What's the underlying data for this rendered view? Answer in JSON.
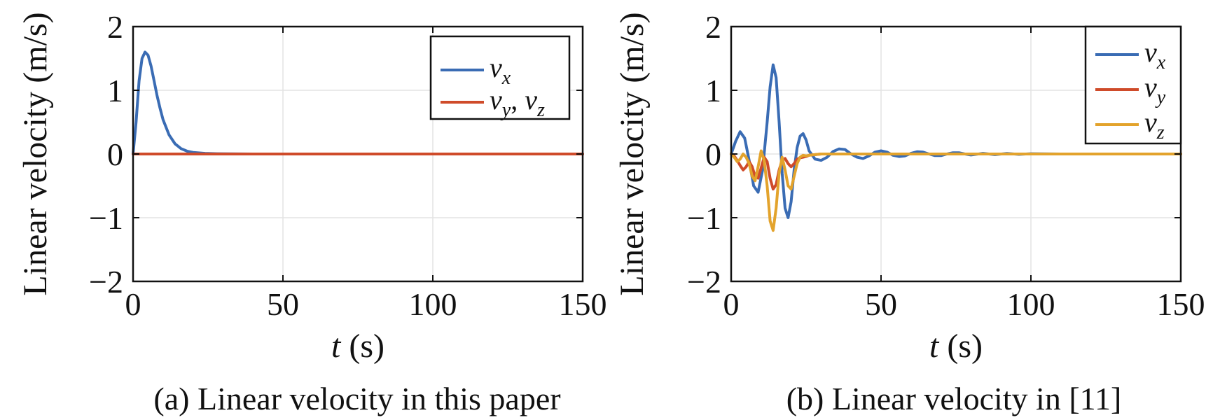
{
  "chart_data": [
    {
      "type": "line",
      "caption": "(a) Linear velocity in this paper",
      "xlabel_var": "t",
      "xlabel_unit": " (s)",
      "ylabel": "Linear velocity (m/s)",
      "xlim": [
        0,
        150
      ],
      "ylim": [
        -2,
        2
      ],
      "xticks": [
        "0",
        "50",
        "100",
        "150"
      ],
      "yticks": [
        "2",
        "1",
        "0",
        "−1",
        "−2"
      ],
      "grid": true,
      "legend_position": "top-right",
      "series": [
        {
          "name": "v_x",
          "legend": {
            "base": "v",
            "sub": "x"
          },
          "color": "#3a6cb4",
          "x": [
            0,
            1,
            2,
            3,
            4,
            5,
            6,
            7,
            8,
            9,
            10,
            12,
            14,
            16,
            18,
            20,
            24,
            28,
            32,
            40,
            60,
            100,
            150
          ],
          "y": [
            0,
            0.5,
            1.15,
            1.5,
            1.6,
            1.55,
            1.38,
            1.15,
            0.92,
            0.72,
            0.54,
            0.3,
            0.16,
            0.085,
            0.045,
            0.025,
            0.01,
            0.004,
            0.002,
            0,
            0,
            0,
            0
          ]
        },
        {
          "name": "v_y, v_z",
          "legend": {
            "base": "v",
            "sub": "y",
            "base2": "v",
            "sub2": "z"
          },
          "color": "#cf4b2a",
          "x": [
            0,
            150
          ],
          "y": [
            0,
            0
          ]
        }
      ]
    },
    {
      "type": "line",
      "caption": "(b) Linear velocity in [11]",
      "xlabel_var": "t",
      "xlabel_unit": " (s)",
      "ylabel": "Linear velocity (m/s)",
      "xlim": [
        0,
        150
      ],
      "ylim": [
        -2,
        2
      ],
      "xticks": [
        "0",
        "50",
        "100",
        "150"
      ],
      "yticks": [
        "2",
        "1",
        "0",
        "−1",
        "−2"
      ],
      "grid": true,
      "legend_position": "top-right",
      "series": [
        {
          "name": "v_x",
          "legend": {
            "base": "v",
            "sub": "x"
          },
          "color": "#3a6cb4",
          "x": [
            0,
            1.5,
            3,
            4.5,
            6,
            7.5,
            9,
            10.5,
            12,
            13,
            14,
            15,
            16,
            17,
            18,
            19,
            20,
            21,
            22,
            23,
            24,
            25,
            26,
            28,
            30,
            32,
            34,
            36,
            38,
            40,
            42,
            44,
            46,
            48,
            50,
            52,
            54,
            56,
            58,
            60,
            62,
            64,
            66,
            68,
            70,
            72,
            74,
            76,
            78,
            80,
            84,
            88,
            92,
            96,
            100,
            110,
            120,
            130,
            140,
            150
          ],
          "y": [
            0,
            0.2,
            0.35,
            0.25,
            -0.1,
            -0.5,
            -0.6,
            -0.25,
            0.5,
            1.05,
            1.4,
            1.2,
            0.5,
            -0.3,
            -0.85,
            -1.0,
            -0.75,
            -0.25,
            0.1,
            0.28,
            0.32,
            0.22,
            0.05,
            -0.08,
            -0.1,
            -0.05,
            0.04,
            0.08,
            0.07,
            0.0,
            -0.05,
            -0.07,
            -0.03,
            0.03,
            0.05,
            0.03,
            -0.02,
            -0.04,
            -0.03,
            0.01,
            0.035,
            0.03,
            0.0,
            -0.025,
            -0.025,
            0.0,
            0.02,
            0.02,
            0.0,
            -0.015,
            0.01,
            -0.01,
            0.008,
            -0.006,
            0.004,
            0.0,
            0.0,
            0.0,
            0.0,
            0.0
          ]
        },
        {
          "name": "v_y",
          "legend": {
            "base": "v",
            "sub": "y"
          },
          "color": "#cf4b2a",
          "x": [
            0,
            1,
            2,
            3,
            4,
            5,
            6,
            7,
            8,
            9,
            10,
            11,
            12,
            13,
            14,
            15,
            16,
            17,
            18,
            19,
            20,
            21,
            22,
            23,
            24,
            25,
            26,
            28,
            30,
            35,
            40,
            60,
            100,
            150
          ],
          "y": [
            0,
            -0.03,
            -0.1,
            -0.18,
            -0.25,
            -0.2,
            -0.12,
            -0.2,
            -0.35,
            -0.38,
            -0.22,
            -0.05,
            -0.12,
            -0.38,
            -0.55,
            -0.48,
            -0.25,
            -0.1,
            -0.07,
            -0.15,
            -0.2,
            -0.15,
            -0.08,
            -0.06,
            -0.05,
            -0.04,
            -0.02,
            -0.01,
            0.0,
            0.0,
            0.0,
            0.0,
            0.0,
            0.0
          ]
        },
        {
          "name": "v_z",
          "legend": {
            "base": "v",
            "sub": "z"
          },
          "color": "#e3a32c",
          "x": [
            0,
            1,
            2,
            3,
            4,
            5,
            6,
            7,
            8,
            9,
            10,
            11,
            12,
            13,
            14,
            15,
            16,
            17,
            18,
            19,
            20,
            21,
            22,
            23,
            24,
            25,
            26,
            28,
            30,
            35,
            40,
            60,
            100,
            150
          ],
          "y": [
            0,
            -0.05,
            -0.12,
            -0.08,
            0.0,
            -0.05,
            -0.15,
            -0.35,
            -0.42,
            -0.2,
            0.05,
            -0.1,
            -0.5,
            -1.05,
            -1.2,
            -0.85,
            -0.3,
            -0.05,
            -0.25,
            -0.5,
            -0.55,
            -0.35,
            -0.15,
            -0.05,
            -0.02,
            -0.03,
            -0.02,
            -0.01,
            0.0,
            0.0,
            0.0,
            0.0,
            0.0,
            0.0
          ]
        }
      ]
    }
  ]
}
